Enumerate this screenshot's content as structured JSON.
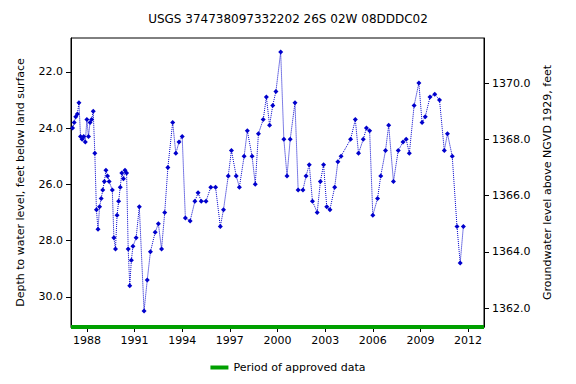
{
  "chart_data": {
    "type": "line",
    "title": "USGS 374738097332202 26S 02W 08DDDC02",
    "y_label": "Depth to water level, feet below land surface",
    "y2_label": "Groundwater level above NGVD 1929, feet",
    "x": [
      1987.1,
      1987.2,
      1987.3,
      1987.4,
      1987.5,
      1987.6,
      1987.7,
      1987.8,
      1987.9,
      1988.0,
      1988.1,
      1988.2,
      1988.3,
      1988.4,
      1988.5,
      1988.6,
      1988.7,
      1988.8,
      1988.9,
      1989.0,
      1989.1,
      1989.2,
      1989.3,
      1989.4,
      1989.6,
      1989.7,
      1989.8,
      1989.9,
      1990.0,
      1990.1,
      1990.2,
      1990.3,
      1990.4,
      1990.5,
      1990.6,
      1990.7,
      1990.8,
      1990.9,
      1991.1,
      1991.3,
      1991.6,
      1991.8,
      1992.0,
      1992.3,
      1992.5,
      1992.7,
      1992.9,
      1993.1,
      1993.4,
      1993.6,
      1993.8,
      1994.0,
      1994.2,
      1994.5,
      1994.8,
      1995.0,
      1995.2,
      1995.5,
      1995.8,
      1996.1,
      1996.4,
      1996.6,
      1996.9,
      1997.1,
      1997.4,
      1997.6,
      1997.9,
      1998.1,
      1998.4,
      1998.6,
      1998.8,
      1999.1,
      1999.3,
      1999.5,
      1999.7,
      1999.9,
      2000.2,
      2000.4,
      2000.6,
      2000.8,
      2001.1,
      2001.3,
      2001.6,
      2001.8,
      2002.0,
      2002.2,
      2002.5,
      2002.7,
      2002.9,
      2003.1,
      2003.3,
      2003.6,
      2003.8,
      2004.0,
      2004.6,
      2004.9,
      2005.1,
      2005.4,
      2005.6,
      2005.8,
      2006.0,
      2006.3,
      2006.5,
      2006.8,
      2007.0,
      2007.3,
      2007.6,
      2007.9,
      2008.1,
      2008.3,
      2008.6,
      2008.9,
      2009.1,
      2009.3,
      2009.6,
      2009.9,
      2010.2,
      2010.5,
      2010.7,
      2011.0,
      2011.3,
      2011.5,
      2011.7
    ],
    "values": [
      24.0,
      23.8,
      23.6,
      23.5,
      23.1,
      24.3,
      24.4,
      24.3,
      24.5,
      23.7,
      24.3,
      23.8,
      23.7,
      23.4,
      24.9,
      26.9,
      27.6,
      26.8,
      26.5,
      26.2,
      25.9,
      25.5,
      25.7,
      25.9,
      26.2,
      27.9,
      28.3,
      27.1,
      26.6,
      26.1,
      25.6,
      25.8,
      25.5,
      25.6,
      28.3,
      29.6,
      28.7,
      28.2,
      27.9,
      26.8,
      30.5,
      29.4,
      28.4,
      27.7,
      27.4,
      28.3,
      27.0,
      25.4,
      23.8,
      24.9,
      24.5,
      24.3,
      27.2,
      27.3,
      26.6,
      26.3,
      26.6,
      26.6,
      26.1,
      26.1,
      27.5,
      26.9,
      25.7,
      24.8,
      25.7,
      26.1,
      25.0,
      24.1,
      25.0,
      26.0,
      24.2,
      23.7,
      22.9,
      23.9,
      23.2,
      22.7,
      21.3,
      24.4,
      25.7,
      24.4,
      23.1,
      26.2,
      26.2,
      25.7,
      25.3,
      26.6,
      27.0,
      25.9,
      25.3,
      26.8,
      26.9,
      26.1,
      25.2,
      25.0,
      24.4,
      23.7,
      24.9,
      24.4,
      24.0,
      24.1,
      27.1,
      26.5,
      25.7,
      24.8,
      23.9,
      25.9,
      24.8,
      24.5,
      24.4,
      24.9,
      23.2,
      22.4,
      23.8,
      23.6,
      22.9,
      22.8,
      23.0,
      24.8,
      24.2,
      25.0,
      27.5,
      28.8,
      27.5
    ],
    "color": "#0000cc",
    "marker": "diamond",
    "line_style": "dotted",
    "approved": {
      "name": "Period of approved data",
      "color": "#00a000",
      "period": [
        1987,
        2013
      ]
    },
    "xlim": [
      1987,
      2013
    ],
    "xticks": [
      1988,
      1991,
      1994,
      1997,
      2000,
      2003,
      2006,
      2009,
      2012
    ],
    "ylim": [
      20.8,
      31.07
    ],
    "yticks": [
      {
        "value": 22,
        "label": "22.0"
      },
      {
        "value": 24,
        "label": "24.0"
      },
      {
        "value": 26,
        "label": "26.0"
      },
      {
        "value": 28,
        "label": "28.0"
      },
      {
        "value": 30,
        "label": "30.0"
      }
    ],
    "y2lim": [
      1361.33,
      1371.6
    ],
    "y2ticks": [
      {
        "value": 1362,
        "label": "1362.0"
      },
      {
        "value": 1364,
        "label": "1364.0"
      },
      {
        "value": 1366,
        "label": "1366.0"
      },
      {
        "value": 1368,
        "label": "1368.0"
      },
      {
        "value": 1370,
        "label": "1370.0"
      }
    ],
    "grid": false,
    "legend": "bottom"
  }
}
